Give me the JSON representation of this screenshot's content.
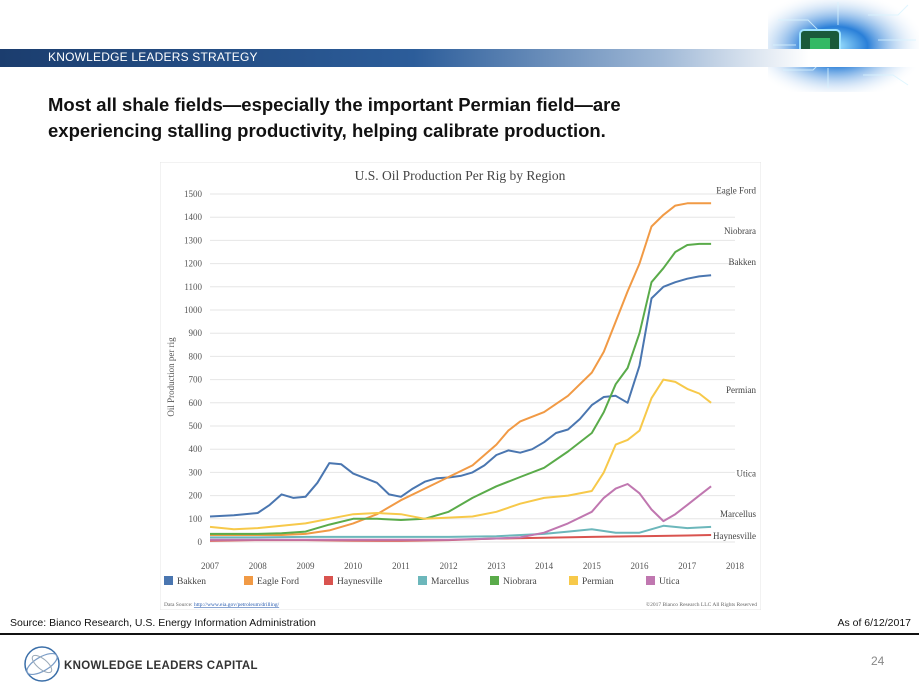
{
  "header": {
    "banner_text": "KNOWLEDGE LEADERS STRATEGY",
    "headline_line1": "Most all shale fields—especially the important Permian field—are",
    "headline_line2": "experiencing stalling productivity, helping calibrate production."
  },
  "footer": {
    "source": "Source: Bianco Research, U.S. Energy Information Administration",
    "as_of": "As of 6/12/2017",
    "company": "KNOWLEDGE LEADERS CAPITAL",
    "page_number": "24"
  },
  "chart_data": {
    "type": "line",
    "title": "U.S. Oil Production Per Rig by Region",
    "ylabel": "Oil Production per rig",
    "xlabel": "",
    "ylim": [
      0,
      1500
    ],
    "yticks": [
      0,
      100,
      200,
      300,
      400,
      500,
      600,
      700,
      800,
      900,
      1000,
      1100,
      1200,
      1300,
      1400,
      1500
    ],
    "xlim": [
      2007,
      2018
    ],
    "xticks": [
      2007,
      2008,
      2009,
      2010,
      2011,
      2012,
      2013,
      2014,
      2015,
      2016,
      2017,
      2018
    ],
    "grid": "horizontal",
    "legend_position": "bottom",
    "data_source_label": "Data Source: ",
    "data_source_url": "http://www.eia.gov/petroleum/drilling/",
    "copyright": "©2017 Bianco Research LLC  All Rights Reserved",
    "series": [
      {
        "name": "Bakken",
        "end_label": "Bakken",
        "color": "#4a76b0",
        "x": [
          2007,
          2007.5,
          2008,
          2008.25,
          2008.5,
          2008.75,
          2009,
          2009.25,
          2009.5,
          2009.75,
          2010,
          2010.25,
          2010.5,
          2010.75,
          2011,
          2011.25,
          2011.5,
          2011.75,
          2012,
          2012.25,
          2012.5,
          2012.75,
          2013,
          2013.25,
          2013.5,
          2013.75,
          2014,
          2014.25,
          2014.5,
          2014.75,
          2015,
          2015.25,
          2015.5,
          2015.75,
          2016,
          2016.25,
          2016.5,
          2016.75,
          2017,
          2017.25,
          2017.5
        ],
        "y": [
          110,
          115,
          125,
          160,
          205,
          190,
          195,
          255,
          340,
          335,
          295,
          275,
          255,
          205,
          195,
          230,
          260,
          275,
          278,
          285,
          300,
          330,
          375,
          395,
          385,
          400,
          430,
          470,
          485,
          530,
          590,
          625,
          630,
          600,
          760,
          1050,
          1100,
          1120,
          1135,
          1145,
          1150
        ]
      },
      {
        "name": "Eagle Ford",
        "end_label": "Eagle Ford",
        "color": "#f19a45",
        "x": [
          2007,
          2007.5,
          2008,
          2008.5,
          2009,
          2009.5,
          2010,
          2010.5,
          2011,
          2011.5,
          2012,
          2012.5,
          2013,
          2013.25,
          2013.5,
          2014,
          2014.5,
          2015,
          2015.25,
          2015.5,
          2015.75,
          2016,
          2016.25,
          2016.5,
          2016.75,
          2017,
          2017.25,
          2017.5
        ],
        "y": [
          30,
          30,
          30,
          30,
          35,
          50,
          80,
          120,
          180,
          230,
          280,
          330,
          420,
          480,
          520,
          560,
          630,
          730,
          820,
          950,
          1080,
          1200,
          1360,
          1410,
          1450,
          1460,
          1460,
          1460
        ]
      },
      {
        "name": "Haynesville",
        "end_label": "Haynesville",
        "color": "#d9534f",
        "x": [
          2007,
          2008,
          2009,
          2010,
          2011,
          2012,
          2013,
          2014,
          2015,
          2016,
          2017,
          2017.5
        ],
        "y": [
          5,
          8,
          8,
          6,
          5,
          8,
          15,
          18,
          22,
          25,
          28,
          30
        ]
      },
      {
        "name": "Marcellus",
        "end_label": "Marcellus",
        "color": "#6cb7bb",
        "x": [
          2007,
          2008,
          2009,
          2010,
          2011,
          2012,
          2013,
          2014,
          2014.5,
          2015,
          2015.5,
          2016,
          2016.5,
          2017,
          2017.5
        ],
        "y": [
          20,
          20,
          22,
          22,
          22,
          22,
          25,
          35,
          45,
          55,
          40,
          40,
          70,
          60,
          65
        ]
      },
      {
        "name": "Niobrara",
        "end_label": "Niobrara",
        "color": "#5aab4a",
        "x": [
          2007,
          2007.5,
          2008,
          2008.5,
          2009,
          2009.5,
          2010,
          2010.5,
          2011,
          2011.5,
          2012,
          2012.5,
          2013,
          2013.5,
          2014,
          2014.5,
          2015,
          2015.25,
          2015.5,
          2015.75,
          2016,
          2016.25,
          2016.5,
          2016.75,
          2017,
          2017.25,
          2017.5
        ],
        "y": [
          35,
          35,
          35,
          38,
          45,
          75,
          100,
          100,
          95,
          100,
          130,
          190,
          240,
          280,
          320,
          390,
          470,
          560,
          680,
          750,
          900,
          1120,
          1180,
          1250,
          1280,
          1285,
          1285
        ]
      },
      {
        "name": "Permian",
        "end_label": "Permian",
        "color": "#f7c94a",
        "x": [
          2007,
          2007.5,
          2008,
          2008.5,
          2009,
          2009.5,
          2010,
          2010.5,
          2011,
          2011.5,
          2012,
          2012.5,
          2013,
          2013.5,
          2014,
          2014.5,
          2015,
          2015.25,
          2015.5,
          2015.75,
          2016,
          2016.25,
          2016.5,
          2016.75,
          2017,
          2017.25,
          2017.5
        ],
        "y": [
          65,
          55,
          60,
          70,
          80,
          100,
          120,
          125,
          120,
          100,
          105,
          110,
          130,
          165,
          190,
          200,
          220,
          300,
          420,
          440,
          480,
          620,
          700,
          690,
          660,
          640,
          600
        ]
      },
      {
        "name": "Utica",
        "end_label": "Utica",
        "color": "#c077b0",
        "x": [
          2007,
          2012,
          2013,
          2013.5,
          2014,
          2014.5,
          2015,
          2015.25,
          2015.5,
          2015.75,
          2016,
          2016.25,
          2016.5,
          2016.75,
          2017,
          2017.25,
          2017.5
        ],
        "y": [
          10,
          10,
          15,
          20,
          40,
          80,
          130,
          190,
          230,
          250,
          210,
          140,
          90,
          120,
          160,
          200,
          240
        ]
      }
    ]
  }
}
